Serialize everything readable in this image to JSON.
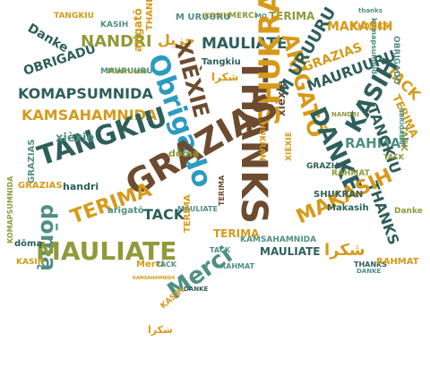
{
  "word_cloud": {
    "colors": {
      "dark_teal": "#2e5f5a",
      "teal": "#4f8f84",
      "gold": "#d69a1a",
      "olive": "#8f9a3a",
      "blue": "#2b9bc0",
      "brown": "#6d4b2f"
    },
    "words": {
      "grazias_main": "GRAZIAS",
      "thanks_vertical": "THANKS",
      "mauliate_big": "MAULIATE",
      "tangkiu_big": "TANGKIU",
      "shukran_vertical": "SHUKRAN",
      "danke_vertical": "DANKE",
      "terima_big": "TERIMA",
      "obrigado_blue": "Obrigado",
      "xiexie_vertical": "XIÈXIE",
      "merci_small": "MERCI",
      "arigato_vertical": "ARIGATÕ",
      "kasih_vertical": "KASIH",
      "makasih": "MAKASIH",
      "komapsumnida": "KOMAPSUMNIDA",
      "kamsahamnida": "KAMSAHAMNIDA",
      "obrigadu": "OBRIGADU",
      "nandri": "NANDRI",
      "danke_small": "Danke",
      "tack": "TACK",
      "merci_bold": "Merci",
      "doma": "dōmą",
      "handri": "handri",
      "xiexie_lower": "xièxie",
      "arigato_lower": "arigatō",
      "dzhuzh": "جزيل",
      "shukran_arabic": "شكرا",
      "grazias_vertical": "GRAZIAS",
      "tangkiu_small": "TANGKIU",
      "rahmat": "RAHMAT",
      "mauruuru": "MAURUURU",
      "uruuru": "M URUURU",
      "thanks_small": "THANKS",
      "kasih_small": "KASIH",
      "komapsumnida_small": "KOMAPSUMNIDA",
      "terima_small": "TERIMA",
      "mauliate_small": "MAULIATE",
      "terima_vertical": "TERIMA",
      "tack_small": "TACK",
      "rahmat_small": "RAHMAT",
      "obrigadu_small": "OBRIGADU",
      "makasih_small": "Makasih",
      "shukran_small": "SHUKRAN",
      "danke_lower": "Danke",
      "thanks_lower": "THANKS",
      "kamsahamnida_small": "KAMSAHAMNIDA",
      "kasih_tail": "KASIH",
      "danke_tail": "DANKE",
      "rahmat_tail": "RAHMAT",
      "merci_tail": "Merci",
      "tack_tail": "TACK",
      "mauliate_tiny": "MAULIATE",
      "tangkiu_tiny": "Tangkiu",
      "mauruuru_tiny": "Mauruuru",
      "grazias_tiny": "GRAZIAS",
      "danke_tiny": "DANKE",
      "tack_tiny": "TACK",
      "merci_top": "MERCI",
      "mo_top": "MO",
      "kasih_top": "KASIH",
      "thanks_top": "thanks",
      "xiexie_right": "XIÈXIE",
      "tack_right": "TACK",
      "obrigado_right": "OBRIGADO",
      "komapsumnida_right": "komapsumnida",
      "nandri_small": "NANDRI",
      "grazias_right": "GRAZIAS",
      "arabic_small": "شكرا",
      "arabic_bottom": "شكرا"
    }
  }
}
